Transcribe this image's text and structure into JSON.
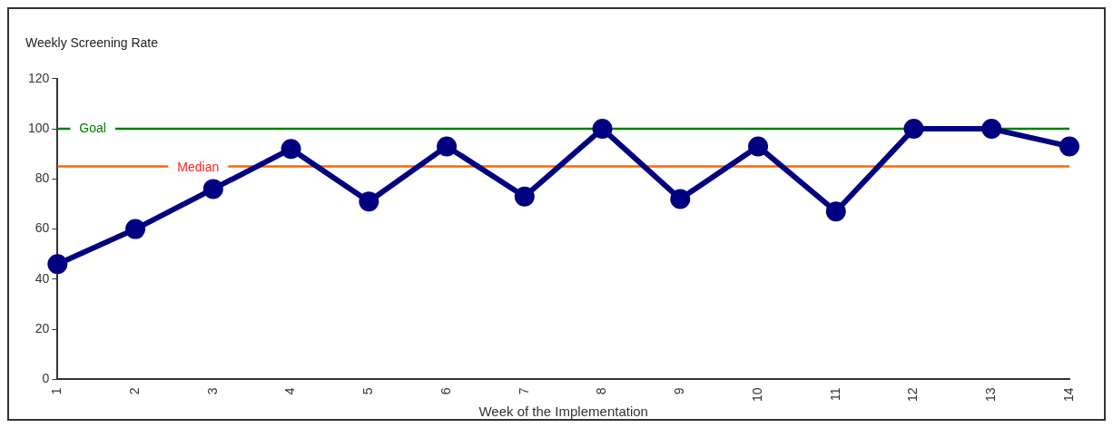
{
  "chart_data": {
    "type": "line",
    "title": "Weekly Screening Rate",
    "xlabel": "Week of the Implementation",
    "categories": [
      "1",
      "2",
      "3",
      "4",
      "5",
      "6",
      "7",
      "8",
      "9",
      "10",
      "11",
      "12",
      "13",
      "14"
    ],
    "series": [
      {
        "color": "#000080",
        "values": [
          46,
          60,
          76,
          92,
          71,
          93,
          73,
          100,
          72,
          93,
          67,
          100,
          100,
          93
        ]
      }
    ],
    "ylim": [
      0,
      120
    ],
    "yticks": [
      0,
      20,
      40,
      60,
      80,
      100,
      120
    ],
    "grid": false,
    "legend": false,
    "marker": "circle",
    "line_style": "solid",
    "ref_lines": [
      {
        "axis": "y",
        "value": 100,
        "label": "Goal",
        "color": "#008000"
      },
      {
        "axis": "y",
        "value": 85,
        "label": "Median",
        "color": "#ff6600"
      }
    ]
  }
}
